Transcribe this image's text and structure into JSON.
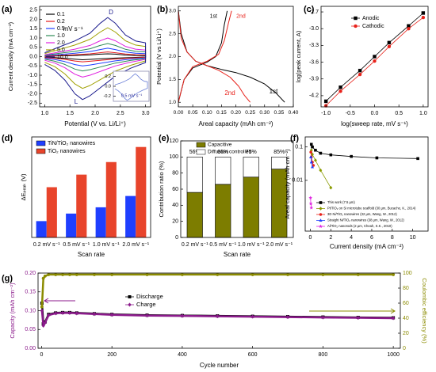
{
  "chart_data": [
    {
      "type": "line",
      "panel": "(a)",
      "xlabel": "Potential (V vs. Li/Li⁺)",
      "ylabel": "Current density (mA cm⁻²)",
      "xlim": [
        0.9,
        3.1
      ],
      "ylim": [
        -2.7,
        2.7
      ],
      "xticks": [
        {
          "value": 1,
          "label": "1.0"
        },
        1.5,
        {
          "value": 2,
          "label": "2.0"
        },
        2.5,
        {
          "value": 3,
          "label": "3.0"
        }
      ],
      "yticks": [
        -2.5,
        {
          "value": -2,
          "label": "-2.0"
        },
        -1.5,
        {
          "value": -1,
          "label": "-1.0"
        },
        -0.5,
        {
          "value": 0,
          "label": "0.0"
        },
        0.5,
        {
          "value": 1,
          "label": "1.0"
        },
        1.5,
        {
          "value": 2,
          "label": "2.0"
        },
        2.5
      ],
      "x": [
        1.0,
        1.3,
        1.6,
        1.9,
        2.1,
        2.25,
        2.4,
        2.6,
        2.8,
        3.0,
        3.0,
        2.7,
        2.4,
        2.1,
        1.9,
        1.75,
        1.6,
        1.4,
        1.2,
        1.0
      ],
      "legend": "upper left",
      "series": [
        {
          "name": "0.1",
          "color": "#000000",
          "values": [
            0.02,
            0.04,
            0.06,
            0.09,
            0.13,
            0.15,
            0.13,
            0.08,
            0.06,
            0.05,
            -0.02,
            -0.05,
            -0.08,
            -0.12,
            -0.15,
            -0.17,
            -0.14,
            -0.09,
            -0.05,
            -0.03
          ]
        },
        {
          "name": "0.2",
          "color": "#e41a1c",
          "values": [
            0.03,
            0.06,
            0.1,
            0.15,
            0.21,
            0.25,
            0.21,
            0.14,
            0.1,
            0.09,
            -0.04,
            -0.08,
            -0.13,
            -0.2,
            -0.25,
            -0.28,
            -0.24,
            -0.15,
            -0.09,
            -0.05
          ]
        },
        {
          "name": "0.5",
          "color": "#1f3fff",
          "values": [
            0.05,
            0.11,
            0.18,
            0.27,
            0.38,
            0.45,
            0.38,
            0.25,
            0.18,
            0.16,
            -0.07,
            -0.14,
            -0.23,
            -0.36,
            -0.45,
            -0.5,
            -0.43,
            -0.27,
            -0.16,
            -0.09
          ]
        },
        {
          "name": "1.0",
          "color": "#2e8b57",
          "values": [
            0.07,
            0.18,
            0.28,
            0.42,
            0.6,
            0.7,
            0.6,
            0.39,
            0.28,
            0.25,
            -0.11,
            -0.21,
            -0.35,
            -0.56,
            -0.7,
            -0.77,
            -0.67,
            -0.42,
            -0.25,
            -0.14
          ]
        },
        {
          "name": "2.0",
          "color": "#e020e0",
          "values": [
            0.1,
            0.25,
            0.4,
            0.6,
            0.85,
            1.0,
            0.85,
            0.55,
            0.4,
            0.35,
            -0.15,
            -0.3,
            -0.5,
            -0.8,
            -1.0,
            -1.1,
            -0.95,
            -0.6,
            -0.35,
            -0.2
          ]
        },
        {
          "name": "5.0",
          "color": "#a0a000",
          "values": [
            0.16,
            0.39,
            0.62,
            0.93,
            1.32,
            1.55,
            1.32,
            0.85,
            0.62,
            0.54,
            -0.23,
            -0.47,
            -0.78,
            -1.24,
            -1.55,
            -1.71,
            -1.47,
            -0.93,
            -0.54,
            -0.31
          ]
        },
        {
          "name": "10.0",
          "color": "#1a1a8c",
          "values": [
            0.21,
            0.53,
            0.84,
            1.26,
            1.79,
            2.1,
            1.79,
            1.16,
            0.84,
            0.74,
            -0.32,
            -0.63,
            -1.05,
            -1.68,
            -2.1,
            -2.31,
            -2.0,
            -1.26,
            -0.74,
            -0.42
          ]
        }
      ],
      "annotations": [
        {
          "text": "D",
          "color": "#1a1a8c"
        },
        {
          "text": "L",
          "color": "#1a1a8c"
        },
        {
          "text": "mV s⁻¹",
          "color": "#000000"
        }
      ]
    },
    {
      "type": "line",
      "xlim": [
        0.9,
        3.1
      ],
      "ylim": [
        -0.3,
        0.3
      ],
      "yticks": [
        0.2,
        {
          "value": 0,
          "label": "0.0"
        },
        -0.2
      ],
      "x": [
        1.0,
        1.3,
        1.6,
        1.9,
        2.1,
        2.25,
        2.4,
        2.6,
        2.8,
        3.0,
        3.0,
        2.7,
        2.4,
        2.1,
        1.9,
        1.75,
        1.6,
        1.4,
        1.2,
        1.0
      ],
      "series": [
        {
          "color": "#6a7fd8",
          "values": [
            0.03,
            0.06,
            0.1,
            0.15,
            0.21,
            0.25,
            0.21,
            0.14,
            0.1,
            0.09,
            -0.04,
            -0.08,
            -0.13,
            -0.2,
            -0.25,
            -0.28,
            -0.24,
            -0.15,
            -0.09,
            -0.05
          ]
        }
      ],
      "annotations": [
        {
          "text": "0.5 mV s⁻¹",
          "color": "#1a1a8c"
        }
      ]
    },
    {
      "type": "line",
      "panel": "(b)",
      "xlabel": "Areal capacity (mAh cm⁻²)",
      "ylabel": "Potential (V vs Li/Li⁺)",
      "xlim": [
        0,
        0.4
      ],
      "ylim": [
        0.9,
        3.1
      ],
      "xticks": [
        {
          "value": 0,
          "label": "0.00"
        },
        0.05,
        {
          "value": 0.1,
          "label": "0.10"
        },
        0.15,
        {
          "value": 0.2,
          "label": "0.20"
        },
        0.25,
        {
          "value": 0.3,
          "label": "0.30"
        },
        0.35,
        {
          "value": 0.4,
          "label": "0.40"
        }
      ],
      "yticks": [
        {
          "value": 1,
          "label": "1.0"
        },
        1.5,
        {
          "value": 2,
          "label": "2.0"
        },
        2.5,
        {
          "value": 3,
          "label": "3.0"
        }
      ],
      "series": [
        {
          "name": "1st",
          "color": "#000000",
          "x": [
            0,
            0.01,
            0.03,
            0.06,
            0.1,
            0.15,
            0.2,
            0.25,
            0.3,
            0.34,
            0.37,
            null,
            0,
            0.02,
            0.05,
            0.1,
            0.13,
            0.15,
            0.16,
            0.17
          ],
          "values": [
            3.0,
            2.5,
            2.1,
            1.9,
            1.8,
            1.72,
            1.65,
            1.55,
            1.4,
            1.2,
            1.0,
            null,
            1.0,
            1.5,
            1.75,
            1.88,
            2.0,
            2.3,
            2.7,
            3.0
          ]
        },
        {
          "name": "2nd",
          "color": "#e8221b",
          "x": [
            0,
            0.01,
            0.03,
            0.06,
            0.1,
            0.14,
            0.18,
            0.21,
            0.23,
            0.25,
            null,
            0,
            0.02,
            0.05,
            0.1,
            0.14,
            0.16,
            0.175,
            0.185
          ],
          "values": [
            3.0,
            2.4,
            2.1,
            1.9,
            1.8,
            1.7,
            1.55,
            1.35,
            1.15,
            1.0,
            null,
            1.0,
            1.5,
            1.78,
            1.9,
            2.05,
            2.35,
            2.75,
            3.0
          ]
        }
      ],
      "annotations": [
        {
          "text": "2nd",
          "color": "#e8221b"
        },
        {
          "text": "1st",
          "color": "#000000"
        }
      ]
    },
    {
      "type": "line",
      "panel": "(c)",
      "xlabel": "log(sweep rate, mV s⁻¹)",
      "ylabel": "log(peak current, A)",
      "xlim": [
        -1.1,
        1.1
      ],
      "ylim": [
        -4.4,
        -2.6
      ],
      "xticks": [
        {
          "value": -1,
          "label": "-1.0"
        },
        -0.5,
        {
          "value": 0,
          "label": "0.0"
        },
        0.5,
        {
          "value": 1,
          "label": "1.0"
        }
      ],
      "yticks": [
        -4.2,
        -3.9,
        -3.6,
        -3.3,
        {
          "value": -3,
          "label": "-3.0"
        },
        -2.7
      ],
      "x": [
        -1.0,
        -0.7,
        -0.3,
        0.0,
        0.3,
        0.7,
        1.0
      ],
      "legend": "upper left",
      "series": [
        {
          "name": "Anodic",
          "color": "#000000",
          "marker": "square",
          "values": [
            -4.3,
            -4.05,
            -3.75,
            -3.5,
            -3.25,
            -2.95,
            -2.72
          ]
        },
        {
          "name": "Cathodic",
          "color": "#e8221b",
          "marker": "circle",
          "values": [
            -4.38,
            -4.12,
            -3.82,
            -3.58,
            -3.32,
            -3.0,
            -2.8
          ]
        }
      ]
    },
    {
      "type": "bar",
      "panel": "(d)",
      "xlabel": "Scan rate",
      "ylabel": "ΔEₚₑₐₖ (V)",
      "ylim": [
        0,
        0.8
      ],
      "categories": [
        "0.2 mV s⁻¹",
        "0.5 mV s⁻¹",
        "1.0 mV s⁻¹",
        "2.0 mV s⁻¹"
      ],
      "legend": "upper left",
      "series": [
        {
          "name": "TiN/TiO₂ nanowires",
          "color": "#1f3fff",
          "values": [
            0.13,
            0.19,
            0.24,
            0.33
          ]
        },
        {
          "name": "TiO₂ nanowires",
          "color": "#e8442b",
          "values": [
            0.4,
            0.5,
            0.6,
            0.72
          ]
        }
      ]
    },
    {
      "type": "stacked_bar",
      "panel": "(e)",
      "xlabel": "Scan rate",
      "ylabel": "Contribution ratio (%)",
      "ylim": [
        0,
        120
      ],
      "yticks": [
        0,
        20,
        40,
        60,
        80,
        100,
        120
      ],
      "categories": [
        "0.2 mV s⁻¹",
        "0.5 mV s⁻¹",
        "1.0 mV s⁻¹",
        "2.0 mV s⁻¹"
      ],
      "legend": "upper left",
      "series": [
        {
          "name": "Capacitive",
          "color": "#7d7d00",
          "values": [
            56,
            66,
            75,
            85
          ],
          "value_labels": [
            "56%",
            "66%",
            "75%",
            "85%"
          ]
        },
        {
          "name": "Diffusion controlled",
          "color": "#ffffff",
          "values": [
            44,
            34,
            25,
            15
          ]
        }
      ]
    },
    {
      "type": "line",
      "panel": "(f)",
      "xlabel": "Current density (mA cm⁻²)",
      "ylabel": "Areal capacity (mAh cm⁻²)",
      "xlim": [
        -0.5,
        11.5
      ],
      "ylim": [
        0.0003,
        0.2
      ],
      "ylog": true,
      "xticks": [
        0,
        2,
        4,
        6,
        8,
        10
      ],
      "yticks": [
        0.01,
        0.1
      ],
      "legend": "lower left",
      "series": [
        {
          "name": "This work (7.5 µm)",
          "color": "#000000",
          "marker": "square",
          "x": [
            0.1,
            0.2,
            0.5,
            1,
            2,
            4,
            6.5,
            10.5
          ],
          "values": [
            0.12,
            0.1,
            0.08,
            0.065,
            0.058,
            0.052,
            0.047,
            0.045
          ]
        },
        {
          "name": "Pt/TiO₂ on Si microtube scaffold (30 µm, Bucacho, K., 2014)",
          "color": "#8a9a00",
          "marker": "diamond",
          "x": [
            0.1,
            0.2,
            0.5,
            1,
            2
          ],
          "values": [
            0.08,
            0.06,
            0.04,
            0.02,
            0.006
          ]
        },
        {
          "name": "3D Ni/TiO₂ nanowires (32 µm, Wang, W., 2012)",
          "color": "#e8221b",
          "marker": "circle",
          "x": [
            0.05,
            0.1,
            0.2,
            0.3
          ],
          "values": [
            0.07,
            0.05,
            0.035,
            0.028
          ]
        },
        {
          "name": "Straight Ni/TiO₂ nanowires (38 µm, Wang, W., 2012)",
          "color": "#1f3fff",
          "marker": "triangle",
          "x": [
            0.05,
            0.1,
            0.2
          ],
          "values": [
            0.05,
            0.035,
            0.025
          ]
        },
        {
          "name": "Al/TiO₂ nanorods (2 µm, Cheah, S.K., 2010)",
          "color": "#e020e0",
          "marker": "star",
          "x": [
            0.02,
            0.05,
            0.1
          ],
          "values": [
            0.003,
            0.002,
            0.0015
          ]
        }
      ]
    },
    {
      "type": "line",
      "panel": "(g)",
      "xlabel": "Cycle number",
      "ylabel": "Capacity (mAh cm⁻²)",
      "y2label": "Coulombic efficiency (%)",
      "ycolor": "#8b1a8b",
      "y2color": "#8b8b00",
      "xlim": [
        -10,
        1020
      ],
      "ylim": [
        0,
        0.2
      ],
      "y2lim": [
        0,
        100
      ],
      "xticks": [
        0,
        200,
        400,
        600,
        800,
        1000
      ],
      "yticks": [
        {
          "value": 0,
          "label": "0.00"
        },
        0.05,
        {
          "value": 0.1,
          "label": "0.10"
        },
        0.15,
        {
          "value": 0.2,
          "label": "0.20"
        }
      ],
      "y2ticks": [
        0,
        20,
        40,
        60,
        80,
        100
      ],
      "x": [
        1,
        5,
        10,
        20,
        40,
        60,
        80,
        100,
        150,
        200,
        300,
        400,
        500,
        600,
        700,
        800,
        900,
        1000
      ],
      "legend": "upper left",
      "series": [
        {
          "name": "Discharge",
          "color": "#000000",
          "marker": "square",
          "values": [
            0.12,
            0.065,
            0.07,
            0.09,
            0.094,
            0.095,
            0.095,
            0.094,
            0.092,
            0.09,
            0.088,
            0.087,
            0.086,
            0.085,
            0.084,
            0.083,
            0.082,
            0.081
          ]
        },
        {
          "name": "Charge",
          "color": "#8b1a8b",
          "marker": "diamond",
          "values": [
            0.1,
            0.06,
            0.068,
            0.088,
            0.093,
            0.094,
            0.094,
            0.093,
            0.091,
            0.089,
            0.087,
            0.086,
            0.085,
            0.084,
            0.083,
            0.082,
            0.081,
            0.08
          ]
        },
        {
          "color": "#8b8b00",
          "marker": "circle",
          "axis": "y2",
          "values": [
            55,
            93,
            96,
            98,
            98,
            98,
            98,
            98,
            98,
            98,
            98,
            98,
            98,
            98,
            98,
            98,
            98,
            98
          ]
        }
      ]
    }
  ]
}
